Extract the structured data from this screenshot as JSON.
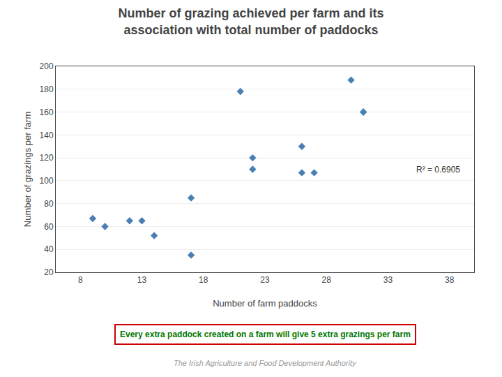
{
  "chart_data": {
    "type": "scatter",
    "title": "Number of grazing achieved per farm and its\nassociation with total number of paddocks",
    "x_label": "Number of farm paddocks",
    "y_label": "Number of grazings per farm",
    "x": [
      9,
      10,
      12,
      13,
      14,
      17,
      17,
      21,
      22,
      22,
      26,
      26,
      27,
      30,
      31,
      31
    ],
    "values": [
      67,
      60,
      65,
      65,
      52,
      35,
      85,
      178,
      120,
      110,
      130,
      107,
      107,
      188,
      160,
      160
    ],
    "color": "#4a7fb5",
    "marker": "diamond",
    "xlim": [
      6,
      40
    ],
    "ylim": [
      20,
      200
    ],
    "xticks": [
      8,
      13,
      18,
      23,
      28,
      33,
      38
    ],
    "yticks": [
      20,
      40,
      60,
      80,
      100,
      120,
      140,
      160,
      180,
      200
    ],
    "grid": "y",
    "annotations": [
      "R² = 0.6905",
      "Every extra paddock created on a farm will give 5 extra grazings per farm",
      "The Irish Agriculture and Food Development Authority"
    ]
  }
}
